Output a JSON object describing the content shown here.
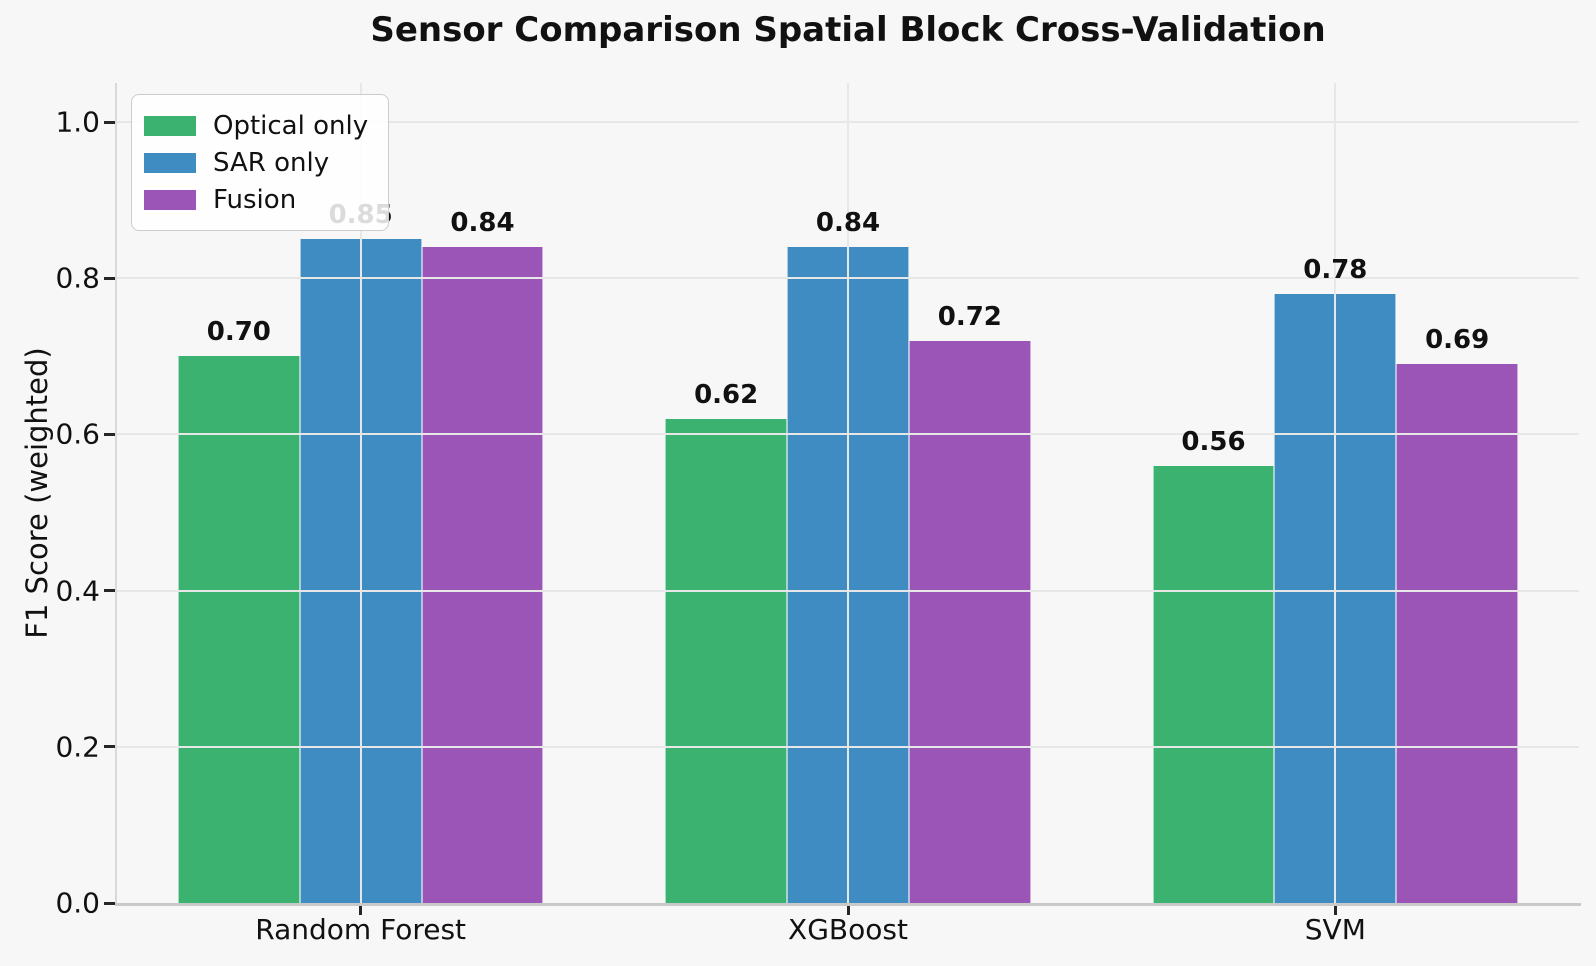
{
  "chart_data": {
    "type": "bar",
    "title": "Sensor Comparison Spatial Block Cross-Validation",
    "xlabel": "",
    "ylabel": "F1 Score (weighted)",
    "categories": [
      "Random Forest",
      "XGBoost",
      "SVM"
    ],
    "series": [
      {
        "name": "Optical only",
        "color": "#3bb26f",
        "values": [
          0.7,
          0.62,
          0.56
        ]
      },
      {
        "name": "SAR only",
        "color": "#3e8cc1",
        "values": [
          0.85,
          0.84,
          0.78
        ]
      },
      {
        "name": "Fusion",
        "color": "#9a55b7",
        "values": [
          0.84,
          0.72,
          0.69
        ]
      }
    ],
    "value_label_decimals": 2,
    "yticks": [
      0.0,
      0.2,
      0.4,
      0.6,
      0.8,
      1.0
    ],
    "ytick_labels": [
      "0.0",
      "0.2",
      "0.4",
      "0.6",
      "0.8",
      "1.0"
    ],
    "ylim": [
      0,
      1.05
    ],
    "bar_width": 0.25,
    "grid": true,
    "legend_position": "upper left"
  },
  "style": {
    "background": "#f7f7f7",
    "grid_color": "#e7e7e7",
    "spine_color": "#c9c9c9",
    "tick_color": "#262626",
    "text_color": "#111111",
    "legend_bg": "rgba(255,255,255,0.85)",
    "legend_border": "#cccccc"
  }
}
